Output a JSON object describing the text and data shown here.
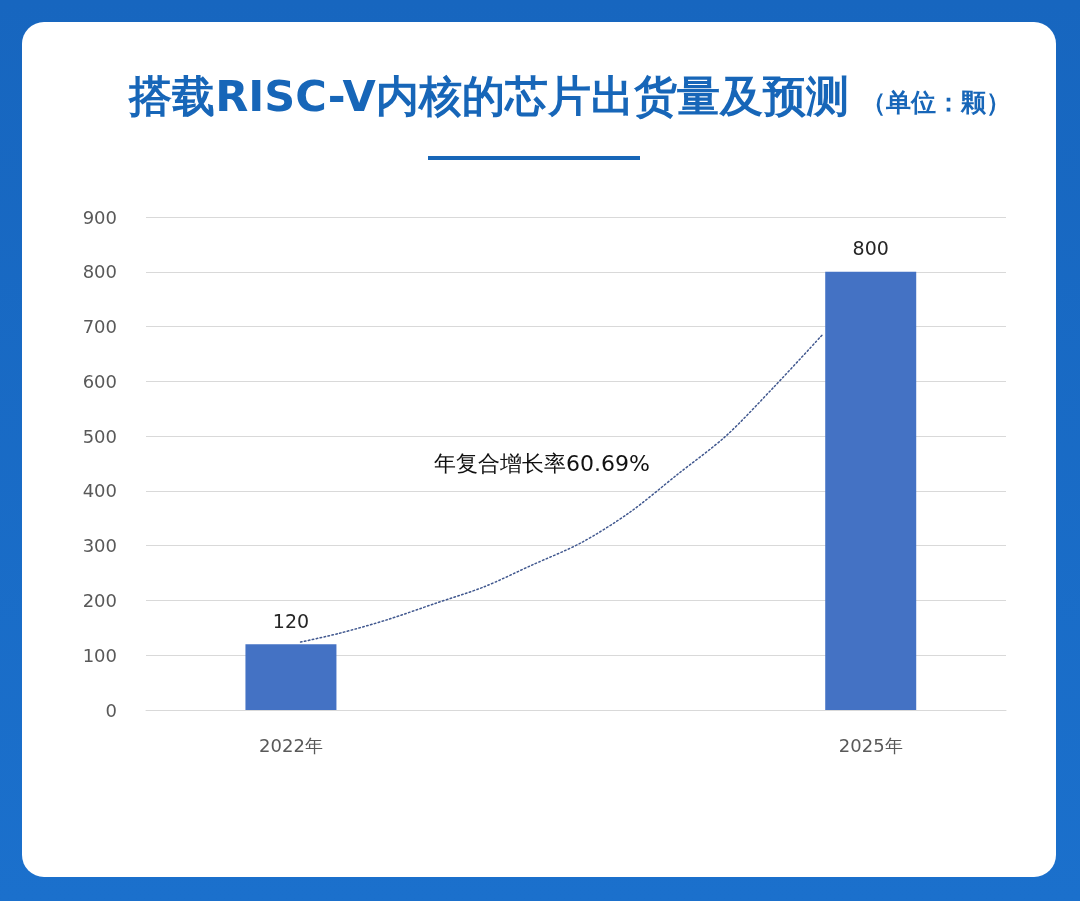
{
  "chart_data": {
    "type": "bar",
    "title": "搭载RISC-V内核的芯片出货量及预测",
    "subtitle": "（单位：颗）",
    "x": [
      2022,
      2025
    ],
    "xlim": [
      2021.25,
      2025.7
    ],
    "xticks": [
      {
        "value": 2022,
        "label": "2022年"
      },
      {
        "value": 2025,
        "label": "2025年"
      }
    ],
    "series": [
      {
        "color": "#4472c4",
        "values": [
          120,
          800
        ],
        "value_labels": [
          "120",
          "800"
        ]
      },
      {
        "type": "line",
        "color": "#41588f",
        "x": [
          2022.05,
          2022.25,
          2022.5,
          2022.75,
          2023,
          2023.25,
          2023.5,
          2023.75,
          2024,
          2024.25,
          2024.5,
          2024.75
        ],
        "values": [
          124,
          140,
          165,
          195,
          225,
          265,
          305,
          360,
          430,
          500,
          590,
          685
        ],
        "line_style": "dotted",
        "marker": "none"
      }
    ],
    "ylim": [
      0,
      900
    ],
    "yticks": [
      0,
      100,
      200,
      300,
      400,
      500,
      600,
      700,
      800,
      900
    ],
    "grid": "y",
    "annotations": [
      "年复合增长率60.69%"
    ]
  }
}
